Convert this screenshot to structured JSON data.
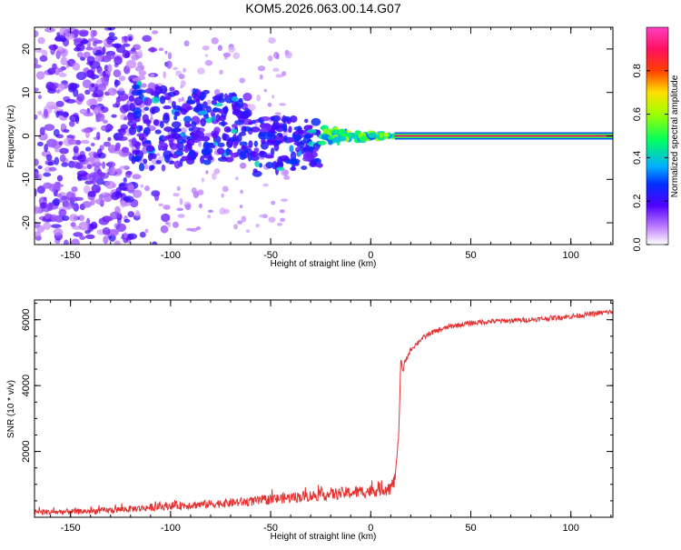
{
  "title": "KOM5.2026.063.00.14.G07",
  "chart_data": [
    {
      "type": "heatmap",
      "title": "KOM5.2026.063.00.14.G07",
      "xlabel": "Height of straight line (km)",
      "ylabel": "Frequency (Hz)",
      "xlim": [
        -168,
        121
      ],
      "ylim": [
        -25,
        25
      ],
      "xticks": [
        -150,
        -100,
        -50,
        0,
        50,
        100
      ],
      "yticks": [
        -20,
        -10,
        0,
        10,
        20
      ],
      "colorbar": {
        "label": "Normalized spectral amplitude",
        "range": [
          0,
          1
        ],
        "ticks": [
          "0.0",
          "0.2",
          "0.4",
          "0.6",
          "0.8"
        ],
        "tick_values": [
          0,
          0.2,
          0.4,
          0.6,
          0.8
        ],
        "colormap": [
          "#ffffff",
          "#a040ff",
          "#4000ff",
          "#0040ff",
          "#00c0ff",
          "#00ff40",
          "#ffe000",
          "#ff4000",
          "#ff1060",
          "#ff30c0"
        ]
      },
      "features": {
        "noise_region_x": [
          -168,
          -120
        ],
        "scatter_region_x": [
          -120,
          -25
        ],
        "converging_region_x": [
          -25,
          12
        ],
        "steady_line_x": [
          12,
          121
        ],
        "steady_line_frequency": 0,
        "steady_line_amplitude": 1.0
      }
    },
    {
      "type": "line",
      "xlabel": "Height of straight line (km)",
      "ylabel": "SNR (10 * v/v)",
      "xlim": [
        -168,
        121
      ],
      "ylim": [
        0,
        6600
      ],
      "xticks": [
        -150,
        -100,
        -50,
        0,
        50,
        100
      ],
      "yticks": [
        2000,
        4000,
        6000
      ],
      "color": "#e53030",
      "points": [
        [
          -168,
          150
        ],
        [
          -140,
          180
        ],
        [
          -120,
          250
        ],
        [
          -100,
          350
        ],
        [
          -80,
          400
        ],
        [
          -60,
          480
        ],
        [
          -40,
          600
        ],
        [
          -20,
          700
        ],
        [
          0,
          800
        ],
        [
          10,
          900
        ],
        [
          12,
          1100
        ],
        [
          14,
          2500
        ],
        [
          15,
          4800
        ],
        [
          16,
          4400
        ],
        [
          17,
          4700
        ],
        [
          20,
          5100
        ],
        [
          25,
          5400
        ],
        [
          30,
          5600
        ],
        [
          40,
          5800
        ],
        [
          50,
          5900
        ],
        [
          60,
          5950
        ],
        [
          80,
          6000
        ],
        [
          100,
          6100
        ],
        [
          121,
          6250
        ]
      ]
    }
  ]
}
